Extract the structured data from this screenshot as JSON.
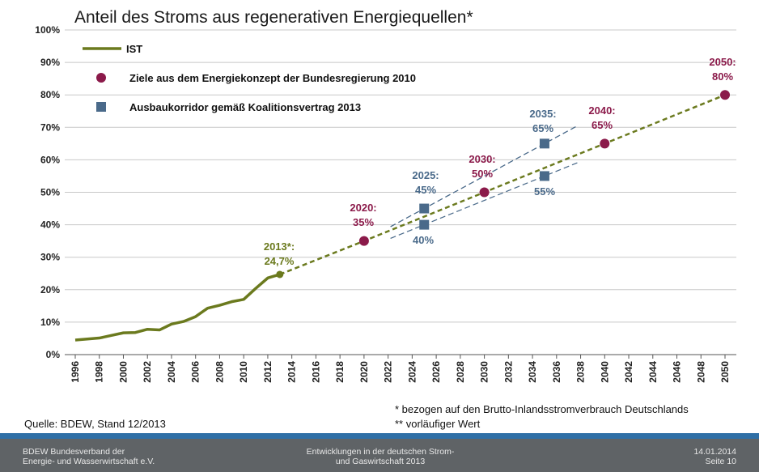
{
  "chart_data": {
    "type": "line",
    "title": "Anteil des Stroms aus regenerativen Energiequellen*",
    "xlabel": "",
    "ylabel": "",
    "xlim": [
      1996,
      2050
    ],
    "ylim": [
      0,
      100
    ],
    "x_ticks": [
      "1996",
      "1998",
      "2000",
      "2002",
      "2004",
      "2006",
      "2008",
      "2010",
      "2012",
      "2014",
      "2016",
      "2018",
      "2020",
      "2022",
      "2024",
      "2026",
      "2028",
      "2030",
      "2032",
      "2034",
      "2036",
      "2038",
      "2040",
      "2042",
      "2044",
      "2046",
      "2048",
      "2050"
    ],
    "y_ticks": [
      "0%",
      "10%",
      "20%",
      "30%",
      "40%",
      "50%",
      "60%",
      "70%",
      "80%",
      "90%",
      "100%"
    ],
    "grid": "horizontal",
    "legend_position": "top-left",
    "series": [
      {
        "name": "IST",
        "color": "#6b7a1e",
        "x": [
          1996,
          1997,
          1998,
          1999,
          2000,
          2001,
          2002,
          2003,
          2004,
          2005,
          2006,
          2007,
          2008,
          2009,
          2010,
          2011,
          2012,
          2013
        ],
        "values": [
          4.5,
          4.8,
          5.1,
          5.9,
          6.7,
          6.8,
          7.8,
          7.6,
          9.4,
          10.2,
          11.7,
          14.3,
          15.2,
          16.3,
          17.0,
          20.4,
          23.6,
          24.7
        ]
      },
      {
        "name": "Ziele aus dem Energiekonzept der Bundesregierung 2010",
        "color": "#8b1a4a",
        "x": [
          2020,
          2030,
          2040,
          2050
        ],
        "values": [
          35,
          50,
          65,
          80
        ]
      },
      {
        "name": "Ausbaukorridor gemäß Koalitionsvertrag 2013",
        "color": "#4a6a8a",
        "x": [
          2025,
          2025,
          2035,
          2035
        ],
        "values": [
          45,
          40,
          65,
          55
        ]
      }
    ],
    "annotations": [
      {
        "line1": "2013*:",
        "line2": "24,7%",
        "color": "#6b7a1e"
      },
      {
        "line1": "2020:",
        "line2": "35%",
        "color": "#8b1a4a"
      },
      {
        "line1": "2030:",
        "line2": "50%",
        "color": "#8b1a4a"
      },
      {
        "line1": "2040:",
        "line2": "65%",
        "color": "#8b1a4a"
      },
      {
        "line1": "2050:",
        "line2": "80%",
        "color": "#8b1a4a"
      },
      {
        "line1": "2025:",
        "line2": "45%",
        "color": "#4a6a8a"
      },
      {
        "line1": "40%",
        "line2": "",
        "color": "#4a6a8a"
      },
      {
        "line1": "2035:",
        "line2": "65%",
        "color": "#4a6a8a"
      },
      {
        "line1": "55%",
        "line2": "",
        "color": "#4a6a8a"
      }
    ]
  },
  "notes": {
    "source": "Quelle: BDEW, Stand 12/2013",
    "footnote1": "* bezogen auf den Brutto-Inlandsstromverbrauch Deutschlands",
    "footnote2": "** vorläufiger Wert"
  },
  "footer": {
    "left_line1": "BDEW Bundesverband der",
    "left_line2": "Energie- und Wasserwirtschaft e.V.",
    "center_line1": "Entwicklungen in der deutschen Strom-",
    "center_line2": "und Gaswirtschaft 2013",
    "right_line1": "14.01.2014",
    "right_line2": "Seite 10"
  }
}
